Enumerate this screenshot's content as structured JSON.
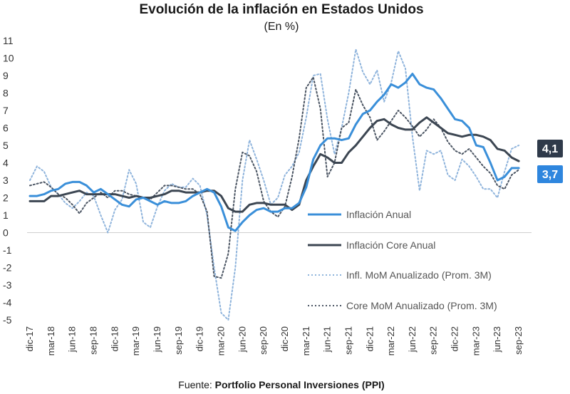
{
  "chart_data": {
    "type": "line",
    "title": "Evolución de la inflación en Estados Unidos",
    "subtitle": "(En %)",
    "source_label": "Fuente:",
    "source_name": "Portfolio Personal Inversiones (PPI)",
    "ylim": [
      -5,
      11
    ],
    "yticks": [
      11,
      10,
      9,
      8,
      7,
      6,
      5,
      4,
      3,
      2,
      1,
      0,
      -1,
      -2,
      -3,
      -4,
      -5
    ],
    "xlim": [
      0,
      70
    ],
    "x_tick_labels": [
      "dic-17",
      "mar-18",
      "jun-18",
      "sep-18",
      "dic-18",
      "mar-19",
      "jun-19",
      "sep-19",
      "dic-19",
      "mar-20",
      "jun-20",
      "sep-20",
      "dic-20",
      "mar-21",
      "jun-21",
      "sep-21",
      "dic-21",
      "mar-22",
      "jun-22",
      "sep-22",
      "dic-22",
      "mar-23",
      "jun-23",
      "sep-23"
    ],
    "x_tick_positions": [
      0,
      3,
      6,
      9,
      12,
      15,
      18,
      21,
      24,
      27,
      30,
      33,
      36,
      39,
      42,
      45,
      48,
      51,
      54,
      57,
      60,
      63,
      66,
      69
    ],
    "end_labels": [
      {
        "text": "4,1",
        "value": 4.1,
        "color": "#2f3a4a"
      },
      {
        "text": "3,7",
        "value": 3.7,
        "color": "#2e86de"
      }
    ],
    "series": [
      {
        "name": "Inflación  Anual",
        "style": "solid",
        "color": "#3a8fd9",
        "values": [
          2.1,
          2.1,
          2.2,
          2.4,
          2.5,
          2.8,
          2.9,
          2.9,
          2.7,
          2.3,
          2.5,
          2.2,
          1.9,
          1.6,
          1.5,
          1.9,
          2.0,
          1.8,
          1.6,
          1.8,
          1.7,
          1.7,
          1.8,
          2.1,
          2.3,
          2.5,
          2.3,
          1.5,
          0.3,
          0.1,
          0.6,
          1.0,
          1.3,
          1.4,
          1.2,
          1.2,
          1.4,
          1.4,
          1.7,
          2.6,
          4.2,
          5.0,
          5.4,
          5.4,
          5.3,
          5.4,
          6.2,
          6.8,
          7.0,
          7.5,
          7.9,
          8.5,
          8.3,
          8.6,
          9.1,
          8.5,
          8.3,
          8.2,
          7.7,
          7.1,
          6.5,
          6.4,
          6.0,
          5.0,
          4.9,
          4.0,
          3.0,
          3.2,
          3.7,
          3.7
        ]
      },
      {
        "name": "Inflación Core Anual",
        "style": "solid",
        "color": "#3c4652",
        "values": [
          1.8,
          1.8,
          1.8,
          2.1,
          2.1,
          2.2,
          2.3,
          2.4,
          2.2,
          2.2,
          2.2,
          2.2,
          2.2,
          2.1,
          2.0,
          2.1,
          2.0,
          2.0,
          2.1,
          2.2,
          2.4,
          2.4,
          2.3,
          2.3,
          2.3,
          2.4,
          2.4,
          2.1,
          1.4,
          1.2,
          1.2,
          1.6,
          1.7,
          1.7,
          1.6,
          1.6,
          1.6,
          1.3,
          1.6,
          3.0,
          3.8,
          4.5,
          4.3,
          4.0,
          4.0,
          4.6,
          5.0,
          5.5,
          6.0,
          6.4,
          6.5,
          6.2,
          6.0,
          5.9,
          5.9,
          6.3,
          6.6,
          6.3,
          6.0,
          5.7,
          5.6,
          5.5,
          5.6,
          5.6,
          5.5,
          5.3,
          4.8,
          4.7,
          4.3,
          4.1
        ]
      },
      {
        "name": "Infl. MoM Anualizado (Prom. 3M)",
        "style": "dotted",
        "color": "#8fb4dc",
        "values": [
          3.0,
          3.8,
          3.5,
          2.6,
          2.2,
          1.7,
          1.4,
          1.8,
          2.3,
          2.1,
          1.0,
          0.0,
          1.3,
          1.9,
          3.6,
          2.8,
          0.6,
          0.3,
          1.5,
          2.4,
          2.8,
          2.6,
          2.6,
          3.1,
          2.7,
          1.0,
          -2.0,
          -4.6,
          -5.0,
          -2.0,
          3.0,
          5.3,
          4.2,
          3.0,
          1.6,
          2.0,
          3.3,
          3.8,
          4.6,
          6.6,
          9.0,
          9.1,
          6.5,
          4.5,
          6.0,
          8.0,
          10.5,
          9.2,
          8.5,
          9.3,
          7.5,
          8.6,
          10.4,
          9.4,
          5.5,
          2.4,
          4.7,
          4.5,
          4.7,
          3.3,
          3.0,
          4.2,
          3.8,
          3.2,
          2.5,
          2.5,
          2.0,
          3.5,
          4.8,
          5.0
        ]
      },
      {
        "name": "Core MoM Anualizado (Prom. 3M)",
        "style": "dotted",
        "color": "#4b5563",
        "values": [
          2.7,
          2.8,
          2.9,
          2.6,
          2.2,
          2.0,
          1.6,
          1.1,
          1.7,
          2.0,
          2.3,
          2.0,
          2.4,
          2.4,
          2.2,
          2.1,
          2.0,
          1.9,
          2.3,
          2.7,
          2.7,
          2.6,
          2.5,
          2.5,
          2.2,
          1.2,
          -2.5,
          -2.6,
          -1.2,
          2.5,
          4.6,
          4.4,
          3.5,
          1.8,
          1.2,
          0.9,
          1.5,
          3.2,
          5.4,
          8.3,
          8.9,
          7.1,
          3.2,
          4.0,
          6.0,
          6.3,
          8.2,
          7.3,
          6.6,
          5.3,
          5.8,
          6.4,
          7.0,
          6.6,
          6.1,
          5.5,
          5.9,
          6.5,
          6.0,
          5.2,
          4.7,
          4.5,
          4.8,
          4.3,
          3.8,
          3.4,
          2.7,
          2.5,
          3.3,
          3.6
        ]
      }
    ]
  }
}
